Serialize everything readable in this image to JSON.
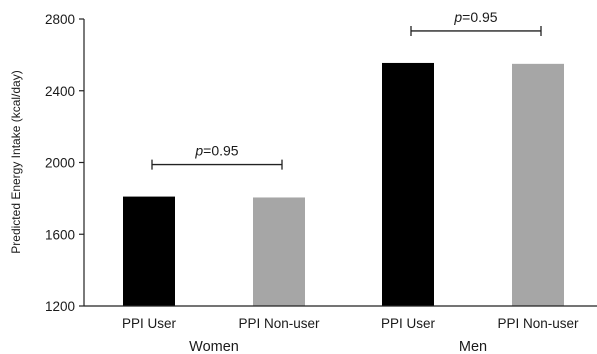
{
  "chart_data": {
    "type": "bar",
    "ylabel": "Predicted Energy Intake (kcal/day)",
    "xlabel": "",
    "ylim": [
      1200,
      2800
    ],
    "yticks": [
      1200,
      1600,
      2000,
      2400,
      2800
    ],
    "y_tick_labels": [
      "1200",
      "1600",
      "2000",
      "2400",
      "2800"
    ],
    "grid": false,
    "legend": "none",
    "groups": [
      {
        "label": "Women",
        "bars": [
          {
            "category": "PPI User",
            "value": 1810,
            "color": "#000000"
          },
          {
            "category": "PPI Non-user",
            "value": 1805,
            "color": "#a6a6a6"
          }
        ],
        "annotation": {
          "italic": "p",
          "text": "=0.95"
        }
      },
      {
        "label": "Men",
        "bars": [
          {
            "category": "PPI User",
            "value": 2555,
            "color": "#000000"
          },
          {
            "category": "PPI Non-user",
            "value": 2550,
            "color": "#a6a6a6"
          }
        ],
        "annotation": {
          "italic": "p",
          "text": "=0.95"
        }
      }
    ]
  }
}
